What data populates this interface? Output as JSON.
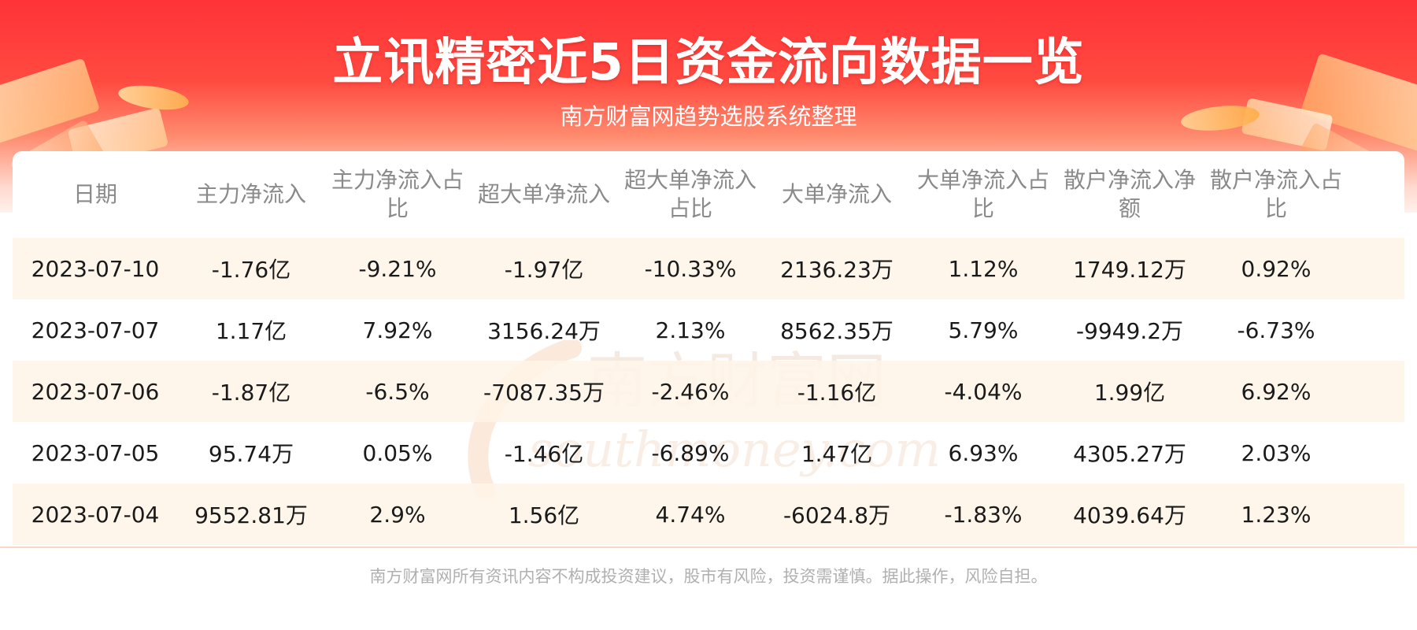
{
  "header": {
    "title": "立讯精密近5日资金流向数据一览",
    "subtitle": "南方财富网趋势选股系统整理"
  },
  "table": {
    "columns": [
      "日期",
      "主力净流入",
      "主力净流入占比",
      "超大单净流入",
      "超大单净流入占比",
      "大单净流入",
      "大单净流入占比",
      "散户净流入净额",
      "散户净流入占比"
    ],
    "rows": [
      [
        "2023-07-10",
        "-1.76亿",
        "-9.21%",
        "-1.97亿",
        "-10.33%",
        "2136.23万",
        "1.12%",
        "1749.12万",
        "0.92%"
      ],
      [
        "2023-07-07",
        "1.17亿",
        "7.92%",
        "3156.24万",
        "2.13%",
        "8562.35万",
        "5.79%",
        "-9949.2万",
        "-6.73%"
      ],
      [
        "2023-07-06",
        "-1.87亿",
        "-6.5%",
        "-7087.35万",
        "-2.46%",
        "-1.16亿",
        "-4.04%",
        "1.99亿",
        "6.92%"
      ],
      [
        "2023-07-05",
        "95.74万",
        "0.05%",
        "-1.46亿",
        "-6.89%",
        "1.47亿",
        "6.93%",
        "4305.27万",
        "2.03%"
      ],
      [
        "2023-07-04",
        "9552.81万",
        "2.9%",
        "1.56亿",
        "4.74%",
        "-6024.8万",
        "-1.83%",
        "4039.64万",
        "1.23%"
      ]
    ]
  },
  "watermark": {
    "cn": "南方财富网",
    "en": "southmoney.com"
  },
  "footer": {
    "disclaimer": "南方财富网所有资讯内容不构成投资建议，股市有风险，投资需谨慎。据此操作，风险自担。"
  },
  "colors": {
    "banner_red": "#ff3338",
    "row_shade": "#fff4e8",
    "header_text": "#8a8a8a",
    "body_text": "#1a1a1a"
  }
}
